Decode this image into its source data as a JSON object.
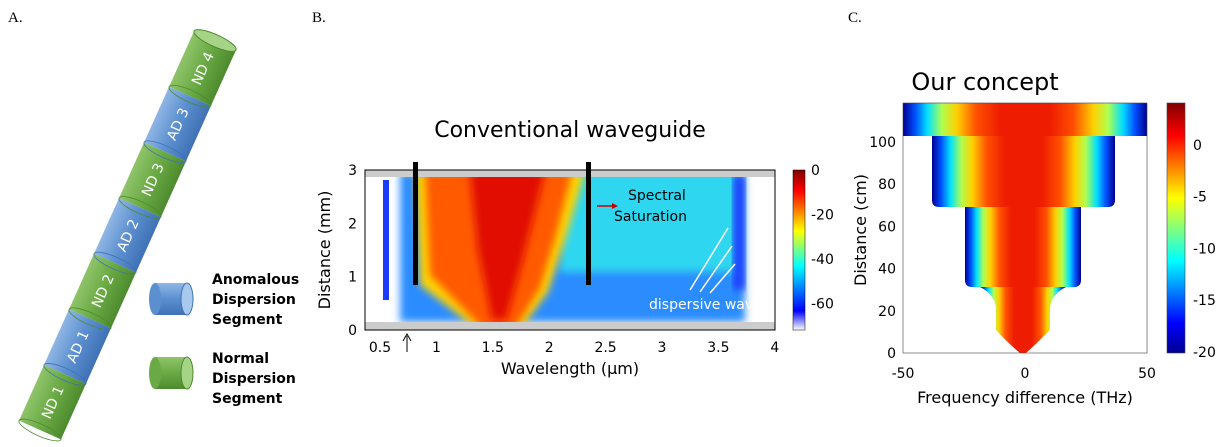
{
  "panels": [
    {
      "label": "A.",
      "segments": [
        "ND 1",
        "AD 1",
        "ND 2",
        "AD 2",
        "ND 3",
        "AD 3",
        "ND 4"
      ],
      "legend": [
        {
          "text": [
            "Anomalous",
            "Dispersion",
            "Segment"
          ]
        },
        {
          "text": [
            "Normal",
            "Dispersion",
            "Segment"
          ]
        }
      ]
    },
    {
      "label": "B.",
      "title": "Conventional waveguide",
      "x_label": "Wavelength (µm)",
      "y_label": "Distance (mm)",
      "x_ticks": [
        "0.5",
        "1",
        "1.5",
        "2",
        "2.5",
        "3",
        "3.5",
        "4"
      ],
      "y_ticks": [
        "0",
        "1",
        "2",
        "3"
      ],
      "colorbar_ticks": [
        "0",
        "-20",
        "-40",
        "-60"
      ],
      "annotations": [
        "Spectral",
        "Saturation",
        "dispersive waves"
      ]
    },
    {
      "label": "C.",
      "title": "Our concept",
      "x_label": "Frequency difference (THz)",
      "y_label": "Distance (cm)",
      "x_ticks": [
        "-50",
        "0",
        "50"
      ],
      "y_ticks": [
        "0",
        "20",
        "40",
        "60",
        "80",
        "100"
      ],
      "colorbar_ticks": [
        "0",
        "-5",
        "-10",
        "-15",
        "-20"
      ]
    }
  ]
}
